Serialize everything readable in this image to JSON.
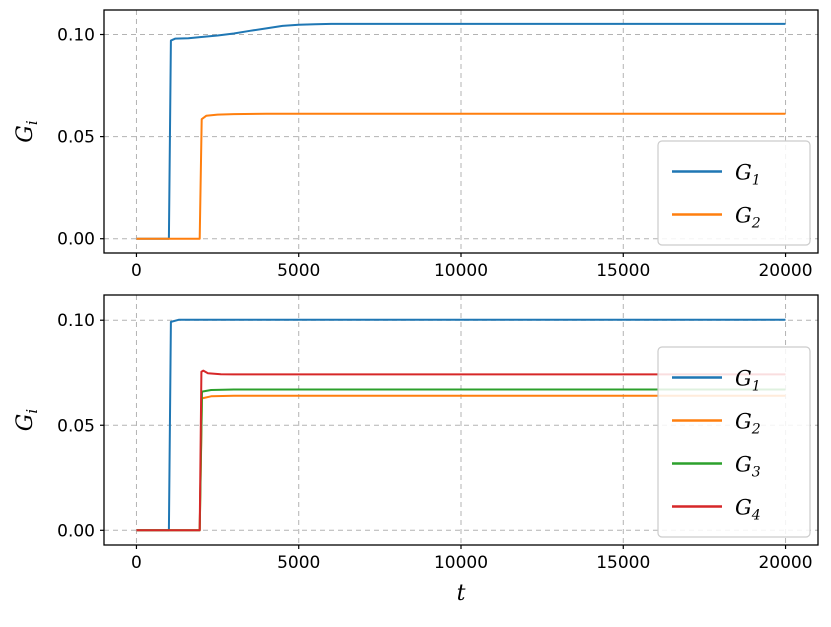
{
  "figure": {
    "background": "#ffffff"
  },
  "chart_data": [
    {
      "type": "line",
      "title": "",
      "xlabel": "",
      "ylabel": "G_i",
      "xlim": [
        -1000,
        21000
      ],
      "ylim": [
        -0.007,
        0.112
      ],
      "xticks": [
        0,
        5000,
        10000,
        15000,
        20000
      ],
      "xtick_labels": [
        "0",
        "5000",
        "10000",
        "15000",
        "20000"
      ],
      "yticks": [
        0,
        0.05,
        0.1
      ],
      "ytick_labels": [
        "0.00",
        "0.05",
        "0.10"
      ],
      "grid": true,
      "grid_style": "dashed",
      "legend_loc": "lower right",
      "series": [
        {
          "name": "G_1",
          "color": "#1f77b4",
          "x": [
            0,
            1000,
            1060,
            1200,
            1600,
            2000,
            2500,
            3000,
            3500,
            4000,
            4500,
            5000,
            5500,
            6000,
            8000,
            20000
          ],
          "y": [
            0,
            0,
            0.097,
            0.098,
            0.0982,
            0.0988,
            0.0995,
            0.1005,
            0.1018,
            0.103,
            0.1042,
            0.1048,
            0.105,
            0.1052,
            0.1052,
            0.1052
          ]
        },
        {
          "name": "G_2",
          "color": "#ff7f0e",
          "x": [
            0,
            1950,
            2010,
            2150,
            2500,
            3000,
            4000,
            20000
          ],
          "y": [
            0,
            0,
            0.0585,
            0.0602,
            0.0608,
            0.061,
            0.0612,
            0.0612
          ]
        }
      ]
    },
    {
      "type": "line",
      "title": "",
      "xlabel": "t",
      "ylabel": "G_i",
      "xlim": [
        -1000,
        21000
      ],
      "ylim": [
        -0.007,
        0.112
      ],
      "xticks": [
        0,
        5000,
        10000,
        15000,
        20000
      ],
      "xtick_labels": [
        "0",
        "5000",
        "10000",
        "15000",
        "20000"
      ],
      "yticks": [
        0,
        0.05,
        0.1
      ],
      "ytick_labels": [
        "0.00",
        "0.05",
        "0.10"
      ],
      "grid": true,
      "grid_style": "dashed",
      "legend_loc": "lower right",
      "series": [
        {
          "name": "G_1",
          "color": "#1f77b4",
          "x": [
            0,
            1000,
            1060,
            1300,
            2000,
            20000
          ],
          "y": [
            0,
            0,
            0.0992,
            0.1002,
            0.1002,
            0.1002
          ]
        },
        {
          "name": "G_2",
          "color": "#ff7f0e",
          "x": [
            0,
            1950,
            2020,
            2300,
            3000,
            20000
          ],
          "y": [
            0,
            0,
            0.0628,
            0.0638,
            0.064,
            0.064
          ]
        },
        {
          "name": "G_3",
          "color": "#2ca02c",
          "x": [
            0,
            1950,
            2020,
            2300,
            3000,
            20000
          ],
          "y": [
            0,
            0,
            0.066,
            0.0668,
            0.067,
            0.067
          ]
        },
        {
          "name": "G_4",
          "color": "#d62728",
          "x": [
            0,
            1950,
            2000,
            2060,
            2200,
            2600,
            3000,
            20000
          ],
          "y": [
            0,
            0,
            0.0755,
            0.076,
            0.0748,
            0.0743,
            0.0742,
            0.0742
          ]
        }
      ]
    }
  ],
  "style": {
    "grid_color": "#b3b3b3",
    "frame_color": "#000000",
    "legend_border_color": "#cccccc",
    "legend_bg": "rgba(255,255,255,0.85)"
  }
}
